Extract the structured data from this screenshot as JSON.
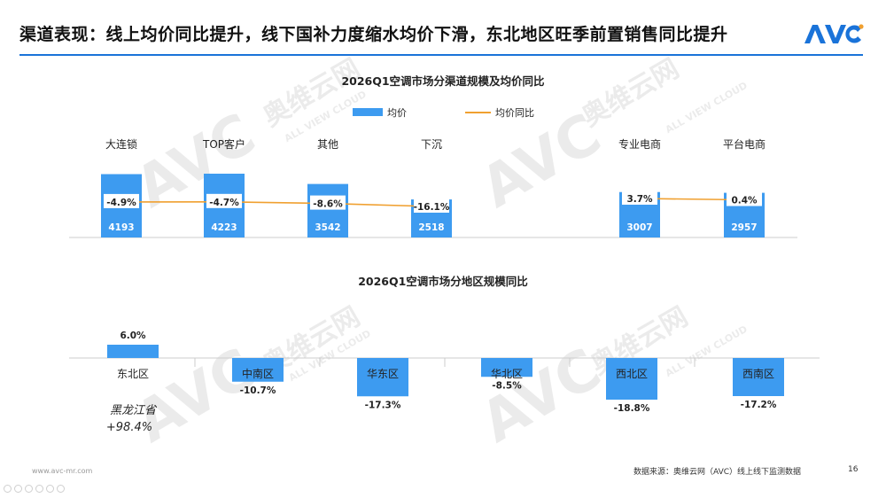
{
  "header": {
    "title": "渠道表现：线上均价同比提升，线下国补力度缩水均价下滑，东北地区旺季前置销售同比提升",
    "logo_text": "AVC"
  },
  "watermark": {
    "cn": "奥维云网",
    "en": "ALL VIEW CLOUD",
    "mark": "AVC"
  },
  "colors": {
    "bar": "#3d9bf0",
    "line": "#f0a030",
    "title_rule": "#1a73d9",
    "axis": "#cccccc"
  },
  "chart_data": [
    {
      "type": "bar",
      "title": "2026Q1空调市场分渠道规模及均价同比",
      "legend": [
        "均价",
        "均价同比"
      ],
      "legend_position": "top",
      "categories": [
        "大连锁",
        "TOP客户",
        "其他",
        "下沉",
        "专业电商",
        "平台电商"
      ],
      "series": [
        {
          "name": "均价",
          "type": "bar",
          "values": [
            4193,
            4223,
            3542,
            2518,
            3007,
            2957
          ]
        },
        {
          "name": "均价同比",
          "type": "line",
          "values": [
            -4.9,
            -4.7,
            -8.6,
            -16.1,
            3.7,
            0.4
          ],
          "labels": [
            "-4.9%",
            "-4.7%",
            "-8.6%",
            "-16.1%",
            "3.7%",
            "0.4%"
          ]
        }
      ],
      "groups": [
        [
          "大连锁",
          "TOP客户",
          "其他",
          "下沉"
        ],
        [
          "专业电商",
          "平台电商"
        ]
      ]
    },
    {
      "type": "bar",
      "title": "2026Q1空调市场分地区规模同比",
      "categories": [
        "东北区",
        "中南区",
        "华东区",
        "华北区",
        "西北区",
        "西南区"
      ],
      "values": [
        6.0,
        -10.7,
        -17.3,
        -8.5,
        -18.8,
        -17.2
      ],
      "labels": [
        "6.0%",
        "-10.7%",
        "-17.3%",
        "-8.5%",
        "-18.8%",
        "-17.2%"
      ],
      "annotation": {
        "region": "黑龙江省",
        "value": "+98.4%"
      }
    }
  ],
  "footer": {
    "website": "www.avc-mr.com",
    "source": "数据来源：奥维云网（AVC）线上线下监测数据",
    "page": "16"
  }
}
